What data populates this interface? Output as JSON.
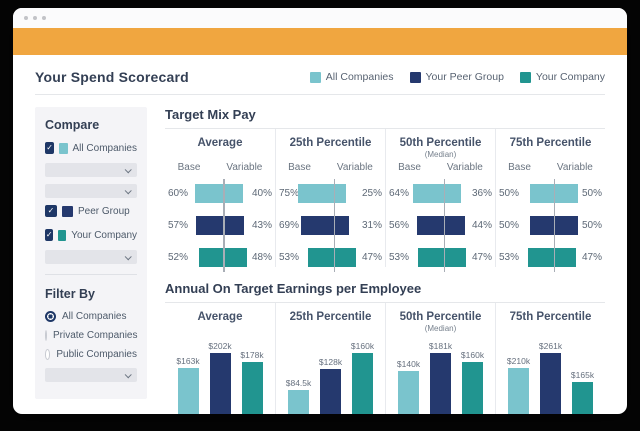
{
  "colors": {
    "banner": "#f0a640",
    "series": [
      "#7ac4cd",
      "#25396e",
      "#219590"
    ],
    "checkbox": "#1e3766"
  },
  "header": {
    "title": "Your Spend Scorecard",
    "legend": [
      {
        "label": "All Companies",
        "color": "#7ac4cd"
      },
      {
        "label": "Your Peer Group",
        "color": "#25396e"
      },
      {
        "label": "Your Company",
        "color": "#219590"
      }
    ]
  },
  "sidebar": {
    "compare_title": "Compare",
    "compare_items": [
      {
        "label": "All Companies",
        "swatch": "#7ac4cd",
        "checked": true,
        "dropdowns_after": 2
      },
      {
        "label": "Peer Group",
        "swatch": "#25396e",
        "checked": true,
        "dropdowns_after": 0
      },
      {
        "label": "Your Company",
        "swatch": "#219590",
        "checked": true,
        "dropdowns_after": 1
      }
    ],
    "filter_title": "Filter By",
    "filter_items": [
      {
        "label": "All Companies",
        "selected": true
      },
      {
        "label": "Private Companies",
        "selected": false
      },
      {
        "label": "Public Companies",
        "selected": false
      }
    ]
  },
  "chart_data": [
    {
      "type": "diverging-bar",
      "title": "Target Mix Pay",
      "axis_labels": [
        "Base",
        "Variable"
      ],
      "series": [
        "All Companies",
        "Your Peer Group",
        "Your Company"
      ],
      "unit": "%",
      "columns": [
        {
          "header": "Average",
          "subheader": "",
          "rows": [
            {
              "base": 60,
              "variable": 40
            },
            {
              "base": 57,
              "variable": 43
            },
            {
              "base": 52,
              "variable": 48
            }
          ]
        },
        {
          "header": "25th Percentile",
          "subheader": "",
          "rows": [
            {
              "base": 75,
              "variable": 25
            },
            {
              "base": 69,
              "variable": 31
            },
            {
              "base": 53,
              "variable": 47
            }
          ]
        },
        {
          "header": "50th Percentile",
          "subheader": "(Median)",
          "rows": [
            {
              "base": 64,
              "variable": 36
            },
            {
              "base": 56,
              "variable": 44
            },
            {
              "base": 53,
              "variable": 47
            }
          ]
        },
        {
          "header": "75th Percentile",
          "subheader": "",
          "rows": [
            {
              "base": 50,
              "variable": 50
            },
            {
              "base": 50,
              "variable": 50
            },
            {
              "base": 53,
              "variable": 47
            }
          ]
        }
      ]
    },
    {
      "type": "bar",
      "title": "Annual On Target Earnings per Employee",
      "series": [
        "All Companies",
        "Your Peer Group",
        "Your Company"
      ],
      "unit": "USD thousands",
      "columns": [
        {
          "header": "Average",
          "subheader": "",
          "labels": [
            "$163k",
            "$202k",
            "$178k"
          ],
          "values": [
            163,
            202,
            178
          ]
        },
        {
          "header": "25th Percentile",
          "subheader": "",
          "labels": [
            "$84.5k",
            "$128k",
            "$160k"
          ],
          "values": [
            84.5,
            128,
            160
          ]
        },
        {
          "header": "50th Percentile",
          "subheader": "(Median)",
          "labels": [
            "$140k",
            "$181k",
            "$160k"
          ],
          "values": [
            140,
            181,
            160
          ]
        },
        {
          "header": "75th Percentile",
          "subheader": "",
          "labels": [
            "$210k",
            "$261k",
            "$165k"
          ],
          "values": [
            210,
            261,
            165
          ]
        }
      ]
    }
  ]
}
